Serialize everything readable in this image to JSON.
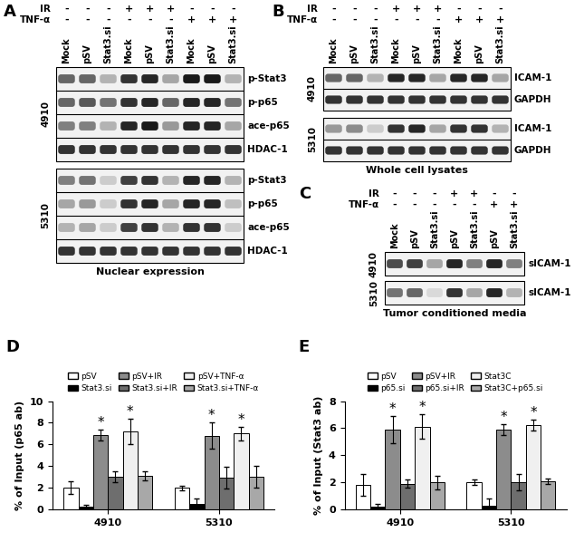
{
  "blots": [
    {
      "label": "A",
      "treatments": [
        {
          "name": "IR",
          "signs": [
            "-",
            "-",
            "-",
            "+",
            "+",
            "+",
            "-",
            "-",
            "-"
          ]
        },
        {
          "name": "TNF-α",
          "signs": [
            "-",
            "-",
            "-",
            "-",
            "-",
            "-",
            "+",
            "+",
            "+"
          ]
        }
      ],
      "lanes": [
        "Mock",
        "pSV",
        "Stat3.si",
        "Mock",
        "pSV",
        "Stat3.si",
        "Mock",
        "pSV",
        "Stat3.si"
      ],
      "caption": "Nuclear expression",
      "cell_lines": [
        {
          "name": "4910",
          "rows": [
            {
              "name": "p-Stat3",
              "intensity": [
                0.6,
                0.6,
                0.3,
                0.8,
                0.85,
                0.35,
                0.9,
                0.9,
                0.3
              ]
            },
            {
              "name": "p-p65",
              "intensity": [
                0.6,
                0.65,
                0.55,
                0.8,
                0.85,
                0.6,
                0.85,
                0.85,
                0.55
              ]
            },
            {
              "name": "ace-p65",
              "intensity": [
                0.5,
                0.5,
                0.3,
                0.85,
                0.9,
                0.4,
                0.85,
                0.85,
                0.35
              ]
            },
            {
              "name": "HDAC-1",
              "intensity": [
                0.8,
                0.8,
                0.8,
                0.8,
                0.8,
                0.8,
                0.8,
                0.8,
                0.8
              ]
            }
          ]
        },
        {
          "name": "5310",
          "rows": [
            {
              "name": "p-Stat3",
              "intensity": [
                0.5,
                0.55,
                0.2,
                0.75,
                0.8,
                0.3,
                0.85,
                0.85,
                0.3
              ]
            },
            {
              "name": "p-p65",
              "intensity": [
                0.35,
                0.4,
                0.2,
                0.8,
                0.85,
                0.35,
                0.85,
                0.85,
                0.25
              ]
            },
            {
              "name": "ace-p65",
              "intensity": [
                0.3,
                0.35,
                0.2,
                0.75,
                0.8,
                0.3,
                0.8,
                0.8,
                0.2
              ]
            },
            {
              "name": "HDAC-1",
              "intensity": [
                0.8,
                0.8,
                0.8,
                0.8,
                0.8,
                0.8,
                0.8,
                0.8,
                0.8
              ]
            }
          ]
        }
      ]
    },
    {
      "label": "B",
      "treatments": [
        {
          "name": "IR",
          "signs": [
            "-",
            "-",
            "-",
            "+",
            "+",
            "+",
            "-",
            "-",
            "-"
          ]
        },
        {
          "name": "TNF-α",
          "signs": [
            "-",
            "-",
            "-",
            "-",
            "-",
            "-",
            "+",
            "+",
            "+"
          ]
        }
      ],
      "lanes": [
        "Mock",
        "pSV",
        "Stat3.si",
        "Mock",
        "pSV",
        "Stat3.si",
        "Mock",
        "pSV",
        "Stat3.si"
      ],
      "caption": "Whole cell lysates",
      "cell_lines": [
        {
          "name": "4910",
          "rows": [
            {
              "name": "ICAM-1",
              "intensity": [
                0.6,
                0.6,
                0.3,
                0.85,
                0.85,
                0.35,
                0.85,
                0.85,
                0.35
              ]
            },
            {
              "name": "GAPDH",
              "intensity": [
                0.8,
                0.8,
                0.8,
                0.8,
                0.8,
                0.8,
                0.8,
                0.8,
                0.8
              ]
            }
          ]
        },
        {
          "name": "5310",
          "rows": [
            {
              "name": "ICAM-1",
              "intensity": [
                0.4,
                0.45,
                0.2,
                0.8,
                0.85,
                0.35,
                0.8,
                0.8,
                0.3
              ]
            },
            {
              "name": "GAPDH",
              "intensity": [
                0.8,
                0.8,
                0.8,
                0.8,
                0.8,
                0.8,
                0.8,
                0.8,
                0.8
              ]
            }
          ]
        }
      ]
    },
    {
      "label": "C",
      "treatments": [
        {
          "name": "IR",
          "signs": [
            "-",
            "-",
            "-",
            "+",
            "+",
            "-",
            "-"
          ]
        },
        {
          "name": "TNF-α",
          "signs": [
            "-",
            "-",
            "-",
            "-",
            "-",
            "+",
            "+"
          ]
        }
      ],
      "lanes": [
        "Mock",
        "pSV",
        "Stat3.si",
        "pSV",
        "Stat3.si",
        "pSV",
        "Stat3.si"
      ],
      "caption": "Tumor conditioned media",
      "cell_lines": [
        {
          "name": "4910",
          "rows": [
            {
              "name": "sICAM-1",
              "intensity": [
                0.7,
                0.75,
                0.35,
                0.85,
                0.5,
                0.85,
                0.5
              ]
            }
          ]
        },
        {
          "name": "5310",
          "rows": [
            {
              "name": "sICAM-1",
              "intensity": [
                0.55,
                0.6,
                0.15,
                0.8,
                0.35,
                0.85,
                0.3
              ]
            }
          ]
        }
      ]
    }
  ],
  "chart_data": [
    {
      "label": "D",
      "type": "bar",
      "ylabel": "% of Input (p65 ab)",
      "categories": [
        "4910",
        "5310"
      ],
      "ylim": [
        0,
        10
      ],
      "yticks": [
        0,
        2,
        4,
        6,
        8,
        10
      ],
      "legend": "top",
      "series": [
        {
          "name": "pSV",
          "color": "#ffffff",
          "values": [
            2.0,
            2.0
          ],
          "errors": [
            0.6,
            0.2
          ]
        },
        {
          "name": "Stat3.si",
          "color": "#000000",
          "values": [
            0.3,
            0.5
          ],
          "errors": [
            0.1,
            0.5
          ]
        },
        {
          "name": "pSV+IR",
          "color": "#8c8c8c",
          "values": [
            6.9,
            6.8
          ],
          "errors": [
            0.5,
            1.2
          ],
          "annotation": "*"
        },
        {
          "name": "Stat3.si+IR",
          "color": "#6e6e6e",
          "values": [
            3.0,
            2.9
          ],
          "errors": [
            0.5,
            1.0
          ]
        },
        {
          "name": "pSV+TNF-α",
          "color": "#f0f0f0",
          "values": [
            7.2,
            7.0
          ],
          "errors": [
            1.2,
            0.6
          ],
          "annotation": "*"
        },
        {
          "name": "Stat3.si+TNF-α",
          "color": "#a8a8a8",
          "values": [
            3.1,
            3.0
          ],
          "errors": [
            0.4,
            1.0
          ]
        }
      ]
    },
    {
      "label": "E",
      "type": "bar",
      "ylabel": "% of Input (Stat3 ab)",
      "categories": [
        "4910",
        "5310"
      ],
      "ylim": [
        0,
        8
      ],
      "yticks": [
        0,
        2,
        4,
        6,
        8
      ],
      "legend": "top",
      "series": [
        {
          "name": "pSV",
          "color": "#ffffff",
          "values": [
            1.8,
            2.0
          ],
          "errors": [
            0.8,
            0.2
          ]
        },
        {
          "name": "p65.si",
          "color": "#000000",
          "values": [
            0.2,
            0.3
          ],
          "errors": [
            0.2,
            0.5
          ]
        },
        {
          "name": "pSV+IR",
          "color": "#8c8c8c",
          "values": [
            5.9,
            5.9
          ],
          "errors": [
            1.0,
            0.4
          ],
          "annotation": "*"
        },
        {
          "name": "p65.si+IR",
          "color": "#6e6e6e",
          "values": [
            1.9,
            2.0
          ],
          "errors": [
            0.3,
            0.6
          ]
        },
        {
          "name": "Stat3C",
          "color": "#f0f0f0",
          "values": [
            6.1,
            6.2
          ],
          "errors": [
            0.9,
            0.4
          ],
          "annotation": "*"
        },
        {
          "name": "Stat3C+p65.si",
          "color": "#a8a8a8",
          "values": [
            2.0,
            2.1
          ],
          "errors": [
            0.5,
            0.2
          ]
        }
      ]
    }
  ]
}
